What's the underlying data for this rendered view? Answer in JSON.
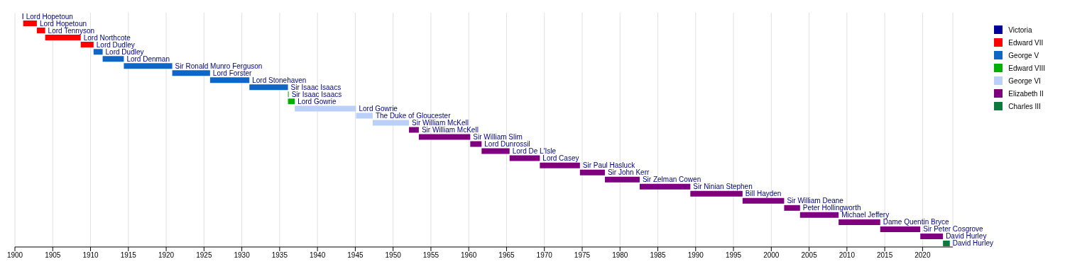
{
  "chart_data": {
    "type": "bar",
    "orientation": "horizontal",
    "categories": [
      "Lord Hopetoun",
      "Lord Hopetoun",
      "Lord Tennyson",
      "Lord Northcote",
      "Lord Dudley",
      "Lord Dudley",
      "Lord Denman",
      "Sir Ronald Munro Ferguson",
      "Lord Forster",
      "Lord Stonehaven",
      "Sir Isaac Isaacs",
      "Sir Isaac Isaacs",
      "Lord Gowrie",
      "Lord Gowrie",
      "The Duke of Gloucester",
      "Sir William McKell",
      "Sir William McKell",
      "Sir William Slim",
      "Lord Dunrossil",
      "Lord De L'Isle",
      "Lord Casey",
      "Sir Paul Hasluck",
      "Sir John Kerr",
      "Sir Zelman Cowen",
      "Sir Ninian Stephen",
      "Bill Hayden",
      "Sir William Deane",
      "Peter Hollingworth",
      "Michael Jeffery",
      "Dame Quentin Bryce",
      "Sir Peter Cosgrove",
      "David Hurley",
      "David Hurley"
    ],
    "series": [
      {
        "name": "Victoria",
        "color": "#000099",
        "values": [
          0.1,
          null,
          null,
          null,
          null,
          null,
          null,
          null,
          null,
          null,
          null,
          null,
          null,
          null,
          null,
          null,
          null,
          null,
          null,
          null,
          null,
          null,
          null,
          null,
          null,
          null,
          null,
          null,
          null,
          null,
          null,
          null,
          null
        ],
        "base": [
          1901.0,
          null,
          null,
          null,
          null,
          null,
          null,
          null,
          null,
          null,
          null,
          null,
          null,
          null,
          null,
          null,
          null,
          null,
          null,
          null,
          null,
          null,
          null,
          null,
          null,
          null,
          null,
          null,
          null,
          null,
          null,
          null,
          null
        ]
      },
      {
        "name": "Edward VII",
        "color": "#ff0000",
        "values": [
          null,
          1.8,
          1.1,
          4.7,
          1.7,
          null,
          null,
          null,
          null,
          null,
          null,
          null,
          null,
          null,
          null,
          null,
          null,
          null,
          null,
          null,
          null,
          null,
          null,
          null,
          null,
          null,
          null,
          null,
          null,
          null,
          null,
          null,
          null
        ],
        "base": [
          null,
          1901.1,
          1902.9,
          1904.0,
          1908.7,
          null,
          null,
          null,
          null,
          null,
          null,
          null,
          null,
          null,
          null,
          null,
          null,
          null,
          null,
          null,
          null,
          null,
          null,
          null,
          null,
          null,
          null,
          null,
          null,
          null,
          null,
          null,
          null
        ]
      },
      {
        "name": "George V",
        "color": "#1066c6",
        "values": [
          null,
          null,
          null,
          null,
          null,
          1.2,
          2.8,
          6.4,
          5.0,
          5.2,
          5.1,
          null,
          null,
          null,
          null,
          null,
          null,
          null,
          null,
          null,
          null,
          null,
          null,
          null,
          null,
          null,
          null,
          null,
          null,
          null,
          null,
          null,
          null
        ],
        "base": [
          null,
          null,
          null,
          null,
          null,
          1910.4,
          1911.6,
          1914.4,
          1920.8,
          1925.8,
          1931.0,
          null,
          null,
          null,
          null,
          null,
          null,
          null,
          null,
          null,
          null,
          null,
          null,
          null,
          null,
          null,
          null,
          null,
          null,
          null,
          null,
          null,
          null
        ]
      },
      {
        "name": "Edward VIII",
        "color": "#00b000",
        "values": [
          null,
          null,
          null,
          null,
          null,
          null,
          null,
          null,
          null,
          null,
          null,
          0.1,
          0.9,
          null,
          null,
          null,
          null,
          null,
          null,
          null,
          null,
          null,
          null,
          null,
          null,
          null,
          null,
          null,
          null,
          null,
          null,
          null,
          null
        ],
        "base": [
          null,
          null,
          null,
          null,
          null,
          null,
          null,
          null,
          null,
          null,
          null,
          1936.1,
          1936.1,
          null,
          null,
          null,
          null,
          null,
          null,
          null,
          null,
          null,
          null,
          null,
          null,
          null,
          null,
          null,
          null,
          null,
          null,
          null,
          null
        ]
      },
      {
        "name": "George VI",
        "color": "#bbd0f8",
        "values": [
          null,
          null,
          null,
          null,
          null,
          null,
          null,
          null,
          null,
          null,
          null,
          null,
          null,
          8.1,
          2.2,
          4.8,
          null,
          null,
          null,
          null,
          null,
          null,
          null,
          null,
          null,
          null,
          null,
          null,
          null,
          null,
          null,
          null,
          null
        ],
        "base": [
          null,
          null,
          null,
          null,
          null,
          null,
          null,
          null,
          null,
          null,
          null,
          null,
          null,
          1937.0,
          1945.1,
          1947.3,
          null,
          null,
          null,
          null,
          null,
          null,
          null,
          null,
          null,
          null,
          null,
          null,
          null,
          null,
          null,
          null,
          null
        ]
      },
      {
        "name": "Elizabeth II",
        "color": "#7f007f",
        "values": [
          null,
          null,
          null,
          null,
          null,
          null,
          null,
          null,
          null,
          null,
          null,
          null,
          null,
          null,
          null,
          null,
          1.3,
          6.8,
          1.5,
          3.7,
          4.0,
          5.3,
          3.3,
          4.6,
          6.7,
          6.9,
          5.5,
          2.1,
          5.1,
          5.5,
          5.3,
          3.0,
          null
        ],
        "base": [
          null,
          null,
          null,
          null,
          null,
          null,
          null,
          null,
          null,
          null,
          null,
          null,
          null,
          null,
          null,
          null,
          1952.1,
          1953.4,
          1960.2,
          1961.7,
          1965.4,
          1969.4,
          1974.7,
          1978.0,
          1982.6,
          1989.3,
          1996.2,
          2001.7,
          2003.8,
          2008.9,
          2014.4,
          2019.7,
          null
        ]
      },
      {
        "name": "Charles III",
        "color": "#0b7a3c",
        "values": [
          null,
          null,
          null,
          null,
          null,
          null,
          null,
          null,
          null,
          null,
          null,
          null,
          null,
          null,
          null,
          null,
          null,
          null,
          null,
          null,
          null,
          null,
          null,
          null,
          null,
          null,
          null,
          null,
          null,
          null,
          null,
          null,
          0.9
        ],
        "base": [
          null,
          null,
          null,
          null,
          null,
          null,
          null,
          null,
          null,
          null,
          null,
          null,
          null,
          null,
          null,
          null,
          null,
          null,
          null,
          null,
          null,
          null,
          null,
          null,
          null,
          null,
          null,
          null,
          null,
          null,
          null,
          null,
          2022.7
        ]
      }
    ],
    "xlim": [
      1900,
      2024
    ],
    "xticks": [
      1900,
      1905,
      1910,
      1915,
      1920,
      1925,
      1930,
      1935,
      1940,
      1945,
      1950,
      1955,
      1960,
      1965,
      1970,
      1975,
      1980,
      1985,
      1990,
      1995,
      2000,
      2005,
      2010,
      2015,
      2020
    ],
    "grid": "x",
    "legend": "top right"
  }
}
